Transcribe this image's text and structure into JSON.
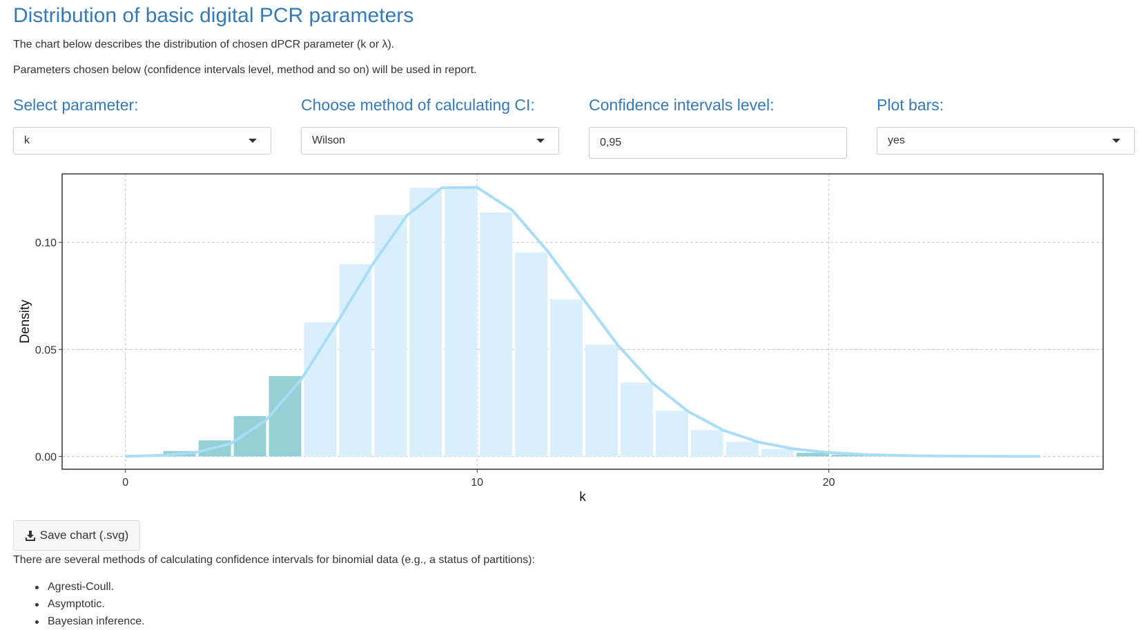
{
  "page": {
    "title": "Distribution of basic digital PCR parameters",
    "intro": "The chart below describes the distribution of chosen dPCR parameter (k or λ).",
    "intro2": "Parameters chosen below (confidence intervals level, method and so on) will be used in report."
  },
  "controls": {
    "parameter": {
      "label": "Select parameter:",
      "value": "k"
    },
    "method": {
      "label": "Choose method of calculating CI:",
      "value": "Wilson"
    },
    "conf_level": {
      "label": "Confidence intervals level:",
      "value": "0,95"
    },
    "plot_bars": {
      "label": "Plot bars:",
      "value": "yes"
    }
  },
  "chart_data": {
    "type": "bar",
    "xlabel": "k",
    "ylabel": "Density",
    "xlim": [
      -1.8,
      27.8
    ],
    "ylim": [
      -0.006,
      0.132
    ],
    "x_ticks": [
      0,
      10,
      20
    ],
    "x_tick_labels": [
      "0",
      "10",
      "20"
    ],
    "y_ticks": [
      0.0,
      0.05,
      0.1
    ],
    "y_tick_labels": [
      "0.00",
      "0.05",
      "0.10"
    ],
    "grid": true,
    "bar_x": [
      1,
      2,
      3,
      4,
      5,
      6,
      7,
      8,
      9,
      10,
      11,
      12,
      13,
      14,
      15,
      16,
      17,
      18,
      19,
      20,
      21,
      22,
      23,
      24,
      25,
      26
    ],
    "bar_values": [
      0.0007,
      0.0025,
      0.0075,
      0.0188,
      0.0375,
      0.0627,
      0.0897,
      0.1128,
      0.1255,
      0.1255,
      0.114,
      0.0953,
      0.0733,
      0.0522,
      0.0345,
      0.0213,
      0.0123,
      0.0068,
      0.0035,
      0.0017,
      0.0008,
      0.0004,
      0.0002,
      0.0001,
      0.0001,
      0.0
    ],
    "ci_bars_lower": [
      1,
      2,
      3,
      4,
      5
    ],
    "ci_bars_upper": [
      20,
      21,
      22
    ],
    "line_x": [
      0,
      1,
      2,
      3,
      4,
      5,
      6,
      7,
      8,
      9,
      10,
      11,
      12,
      13,
      14,
      15,
      16,
      17,
      18,
      19,
      20,
      21,
      22,
      23,
      24,
      25,
      26
    ],
    "line_y": [
      0.0,
      0.0005,
      0.0018,
      0.006,
      0.017,
      0.036,
      0.062,
      0.089,
      0.1125,
      0.1255,
      0.1257,
      0.115,
      0.096,
      0.074,
      0.052,
      0.034,
      0.021,
      0.0122,
      0.0067,
      0.0035,
      0.0018,
      0.0009,
      0.0004,
      0.0002,
      0.0001,
      0.0,
      0.0
    ],
    "colors": {
      "bar": "#d9f0fc",
      "ci_bar": "#8bcbd3",
      "line": "#a8dcf7"
    }
  },
  "save_button": {
    "label": "Save chart (.svg)",
    "icon": "download-icon"
  },
  "methods_intro": "There are several methods of calculating confidence intervals for binomial data (e.g., a status of partitions):",
  "methods": [
    "Agresti-Coull.",
    "Asymptotic.",
    "Bayesian inference."
  ]
}
